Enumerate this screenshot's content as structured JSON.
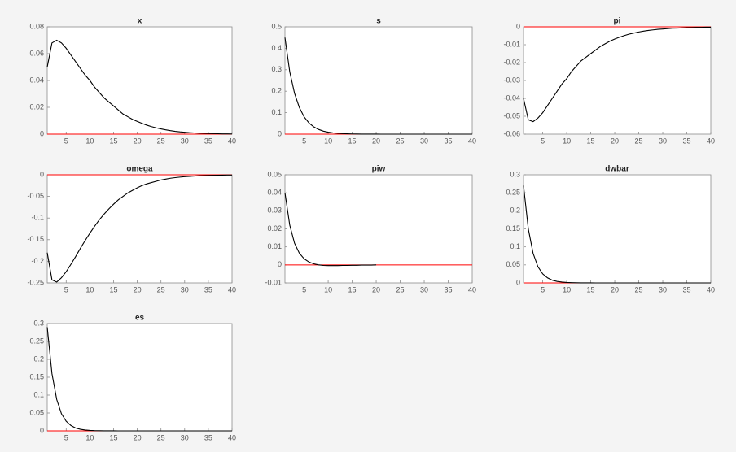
{
  "chart_data": [
    {
      "type": "line",
      "title": "x",
      "x": [
        1,
        2,
        3,
        4,
        5,
        6,
        7,
        8,
        9,
        10,
        11,
        12,
        13,
        14,
        15,
        16,
        17,
        18,
        19,
        20,
        21,
        22,
        23,
        24,
        25,
        26,
        27,
        28,
        29,
        30,
        31,
        32,
        33,
        34,
        35,
        36,
        37,
        38,
        39,
        40
      ],
      "values": [
        0.05,
        0.068,
        0.07,
        0.068,
        0.064,
        0.059,
        0.054,
        0.049,
        0.044,
        0.04,
        0.035,
        0.031,
        0.027,
        0.024,
        0.021,
        0.018,
        0.015,
        0.013,
        0.011,
        0.0095,
        0.008,
        0.0067,
        0.0056,
        0.0047,
        0.0039,
        0.0032,
        0.0026,
        0.0021,
        0.0017,
        0.0014,
        0.0011,
        0.0009,
        0.0007,
        0.0006,
        0.0005,
        0.0004,
        0.0003,
        0.0002,
        0.0002,
        0.0001
      ],
      "color": "#000000",
      "reference_line": 0,
      "reference_color": "#ff0000",
      "xlim": [
        1,
        40
      ],
      "xticks": [
        5,
        10,
        15,
        20,
        25,
        30,
        35,
        40
      ],
      "ylim": [
        0,
        0.08
      ],
      "yticks": [
        0,
        0.02,
        0.04,
        0.06,
        0.08
      ]
    },
    {
      "type": "line",
      "title": "s",
      "x": [
        1,
        2,
        3,
        4,
        5,
        6,
        7,
        8,
        9,
        10,
        11,
        12,
        13,
        14,
        15,
        16,
        17,
        18,
        19,
        20,
        21,
        22,
        23,
        24,
        25,
        26,
        27,
        28,
        29,
        30,
        31,
        32,
        33,
        34,
        35,
        36,
        37,
        38,
        39,
        40
      ],
      "values": [
        0.45,
        0.29,
        0.19,
        0.124,
        0.08,
        0.052,
        0.034,
        0.022,
        0.014,
        0.0093,
        0.006,
        0.0039,
        0.0025,
        0.0016,
        0.001,
        0.0007,
        0.0004,
        0.0003,
        0.0002,
        0.0001,
        0,
        0,
        0,
        0,
        0,
        0,
        0,
        0,
        0,
        0,
        0,
        0,
        0,
        0,
        0,
        0,
        0,
        0,
        0,
        0
      ],
      "color": "#000000",
      "reference_line": 0,
      "reference_color": "#ff0000",
      "xlim": [
        1,
        40
      ],
      "xticks": [
        5,
        10,
        15,
        20,
        25,
        30,
        35,
        40
      ],
      "ylim": [
        0,
        0.5
      ],
      "yticks": [
        0,
        0.1,
        0.2,
        0.3,
        0.4,
        0.5
      ]
    },
    {
      "type": "line",
      "title": "pi",
      "x": [
        1,
        2,
        3,
        4,
        5,
        6,
        7,
        8,
        9,
        10,
        11,
        12,
        13,
        14,
        15,
        16,
        17,
        18,
        19,
        20,
        21,
        22,
        23,
        24,
        25,
        26,
        27,
        28,
        29,
        30,
        31,
        32,
        33,
        34,
        35,
        36,
        37,
        38,
        39,
        40
      ],
      "values": [
        -0.04,
        -0.052,
        -0.053,
        -0.051,
        -0.048,
        -0.044,
        -0.04,
        -0.036,
        -0.032,
        -0.029,
        -0.025,
        -0.022,
        -0.019,
        -0.017,
        -0.015,
        -0.013,
        -0.011,
        -0.0095,
        -0.008,
        -0.0068,
        -0.0058,
        -0.0049,
        -0.0041,
        -0.0035,
        -0.0029,
        -0.0024,
        -0.002,
        -0.0017,
        -0.0014,
        -0.0012,
        -0.001,
        -0.0008,
        -0.0007,
        -0.0006,
        -0.0005,
        -0.0004,
        -0.0003,
        -0.0003,
        -0.0002,
        -0.0002
      ],
      "color": "#000000",
      "reference_line": 0,
      "reference_color": "#ff0000",
      "xlim": [
        1,
        40
      ],
      "xticks": [
        5,
        10,
        15,
        20,
        25,
        30,
        35,
        40
      ],
      "ylim": [
        -0.06,
        0
      ],
      "yticks": [
        -0.06,
        -0.05,
        -0.04,
        -0.03,
        -0.02,
        -0.01,
        0
      ]
    },
    {
      "type": "line",
      "title": "omega",
      "x": [
        1,
        2,
        3,
        4,
        5,
        6,
        7,
        8,
        9,
        10,
        11,
        12,
        13,
        14,
        15,
        16,
        17,
        18,
        19,
        20,
        21,
        22,
        23,
        24,
        25,
        26,
        27,
        28,
        29,
        30,
        31,
        32,
        33,
        34,
        35,
        36,
        37,
        38,
        39,
        40
      ],
      "values": [
        -0.18,
        -0.243,
        -0.248,
        -0.238,
        -0.224,
        -0.207,
        -0.189,
        -0.17,
        -0.152,
        -0.135,
        -0.119,
        -0.104,
        -0.091,
        -0.079,
        -0.068,
        -0.058,
        -0.05,
        -0.042,
        -0.036,
        -0.03,
        -0.025,
        -0.021,
        -0.018,
        -0.015,
        -0.012,
        -0.01,
        -0.008,
        -0.0066,
        -0.0054,
        -0.0044,
        -0.0036,
        -0.0029,
        -0.0023,
        -0.0019,
        -0.0015,
        -0.0012,
        -0.001,
        -0.0008,
        -0.0006,
        -0.0005
      ],
      "color": "#000000",
      "reference_line": 0,
      "reference_color": "#ff0000",
      "xlim": [
        1,
        40
      ],
      "xticks": [
        5,
        10,
        15,
        20,
        25,
        30,
        35,
        40
      ],
      "ylim": [
        -0.25,
        0
      ],
      "yticks": [
        -0.25,
        -0.2,
        -0.15,
        -0.1,
        -0.05,
        0
      ]
    },
    {
      "type": "line",
      "title": "piw",
      "x": [
        1,
        2,
        3,
        4,
        5,
        6,
        7,
        8,
        9,
        10,
        11,
        12,
        13,
        14,
        15,
        16,
        17,
        18,
        19,
        20
      ],
      "values": [
        0.04,
        0.022,
        0.012,
        0.0065,
        0.0034,
        0.0016,
        0.0006,
        0,
        -0.0003,
        -0.0004,
        -0.0004,
        -0.0004,
        -0.0003,
        -0.0003,
        -0.0002,
        -0.0002,
        -0.0001,
        -0.0001,
        -0.0001,
        0
      ],
      "color": "#000000",
      "reference_line": 0,
      "reference_color": "#ff0000",
      "xlim": [
        1,
        40
      ],
      "xticks": [
        5,
        10,
        15,
        20,
        25,
        30,
        35,
        40
      ],
      "ylim": [
        -0.01,
        0.05
      ],
      "yticks": [
        -0.01,
        0,
        0.01,
        0.02,
        0.03,
        0.04,
        0.05
      ]
    },
    {
      "type": "line",
      "title": "dwbar",
      "x": [
        1,
        2,
        3,
        4,
        5,
        6,
        7,
        8,
        9,
        10,
        11,
        12,
        13,
        14,
        15,
        16,
        17,
        18,
        19,
        20,
        21,
        22,
        23,
        24,
        25,
        26,
        27,
        28,
        29,
        30,
        31,
        32,
        33,
        34,
        35,
        36,
        37,
        38,
        39,
        40
      ],
      "values": [
        0.27,
        0.15,
        0.082,
        0.045,
        0.025,
        0.014,
        0.0075,
        0.0041,
        0.0023,
        0.0012,
        0.0007,
        0.0004,
        0.0002,
        0.0001,
        0.0001,
        0,
        0,
        0,
        0,
        0,
        0,
        0,
        0,
        0,
        0,
        0,
        0,
        0,
        0,
        0,
        0,
        0,
        0,
        0,
        0,
        0,
        0,
        0,
        0,
        0
      ],
      "color": "#000000",
      "reference_line": 0,
      "reference_color": "#ff0000",
      "xlim": [
        1,
        40
      ],
      "xticks": [
        5,
        10,
        15,
        20,
        25,
        30,
        35,
        40
      ],
      "ylim": [
        0,
        0.3
      ],
      "yticks": [
        0,
        0.05,
        0.1,
        0.15,
        0.2,
        0.25,
        0.3
      ]
    },
    {
      "type": "line",
      "title": "es",
      "x": [
        1,
        2,
        3,
        4,
        5,
        6,
        7,
        8,
        9,
        10,
        11,
        12,
        13,
        14,
        15,
        16,
        17,
        18,
        19,
        20,
        21,
        22,
        23,
        24,
        25,
        26,
        27,
        28,
        29,
        30,
        31,
        32,
        33,
        34,
        35,
        36,
        37,
        38,
        39,
        40
      ],
      "values": [
        0.29,
        0.16,
        0.088,
        0.048,
        0.027,
        0.015,
        0.008,
        0.0044,
        0.0024,
        0.0013,
        0.0007,
        0.0004,
        0.0002,
        0.0001,
        0.0001,
        0,
        0,
        0,
        0,
        0,
        0,
        0,
        0,
        0,
        0,
        0,
        0,
        0,
        0,
        0,
        0,
        0,
        0,
        0,
        0,
        0,
        0,
        0,
        0,
        0
      ],
      "color": "#000000",
      "reference_line": 0,
      "reference_color": "#ff0000",
      "xlim": [
        1,
        40
      ],
      "xticks": [
        5,
        10,
        15,
        20,
        25,
        30,
        35,
        40
      ],
      "ylim": [
        0,
        0.3
      ],
      "yticks": [
        0,
        0.05,
        0.1,
        0.15,
        0.2,
        0.25,
        0.3
      ]
    }
  ]
}
